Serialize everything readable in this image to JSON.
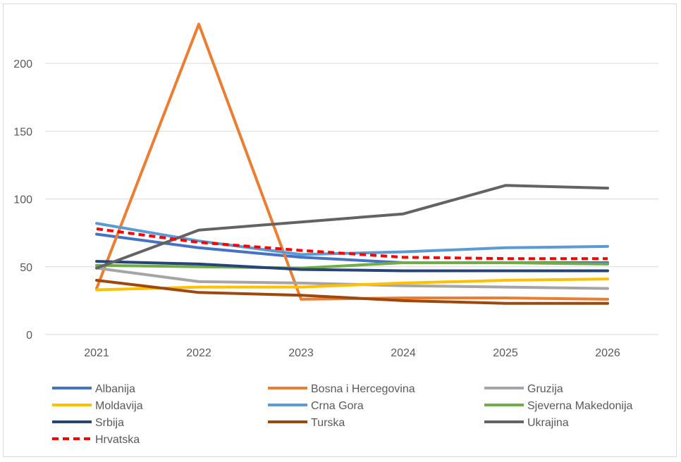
{
  "chart_data": {
    "type": "line",
    "x": [
      "2021",
      "2022",
      "2023",
      "2024",
      "2025",
      "2026"
    ],
    "ylim": [
      0,
      240
    ],
    "yticks": [
      0,
      50,
      100,
      150,
      200
    ],
    "grid": true,
    "legend_position": "bottom",
    "series": [
      {
        "name": "Albanija",
        "color": "#4472C4",
        "dash": false,
        "values": [
          74,
          64,
          57,
          53,
          53,
          53
        ]
      },
      {
        "name": "Bosna i Hercegovina",
        "color": "#ED7D31",
        "dash": false,
        "values": [
          34,
          229,
          26,
          27,
          27,
          26
        ]
      },
      {
        "name": "Gruzija",
        "color": "#A5A5A5",
        "dash": false,
        "values": [
          49,
          39,
          38,
          36,
          35,
          34
        ]
      },
      {
        "name": "Moldavija",
        "color": "#FFC000",
        "dash": false,
        "values": [
          33,
          35,
          35,
          38,
          40,
          41
        ]
      },
      {
        "name": "Crna Gora",
        "color": "#5B9BD5",
        "dash": false,
        "values": [
          82,
          69,
          59,
          61,
          64,
          65
        ]
      },
      {
        "name": "Sjeverna Makedonija",
        "color": "#70AD47",
        "dash": false,
        "values": [
          51,
          50,
          49,
          53,
          53,
          52
        ]
      },
      {
        "name": "Srbija",
        "color": "#264478",
        "dash": false,
        "values": [
          54,
          52,
          48,
          47,
          47,
          47
        ]
      },
      {
        "name": "Turska",
        "color": "#9E480E",
        "dash": false,
        "values": [
          40,
          31,
          29,
          25,
          23,
          23
        ]
      },
      {
        "name": "Ukrajina",
        "color": "#636363",
        "dash": false,
        "values": [
          49,
          77,
          83,
          89,
          110,
          108
        ]
      },
      {
        "name": "Hrvatska",
        "color": "#FF0000",
        "dash": true,
        "values": [
          78,
          68,
          62,
          57,
          56,
          56
        ]
      }
    ]
  }
}
